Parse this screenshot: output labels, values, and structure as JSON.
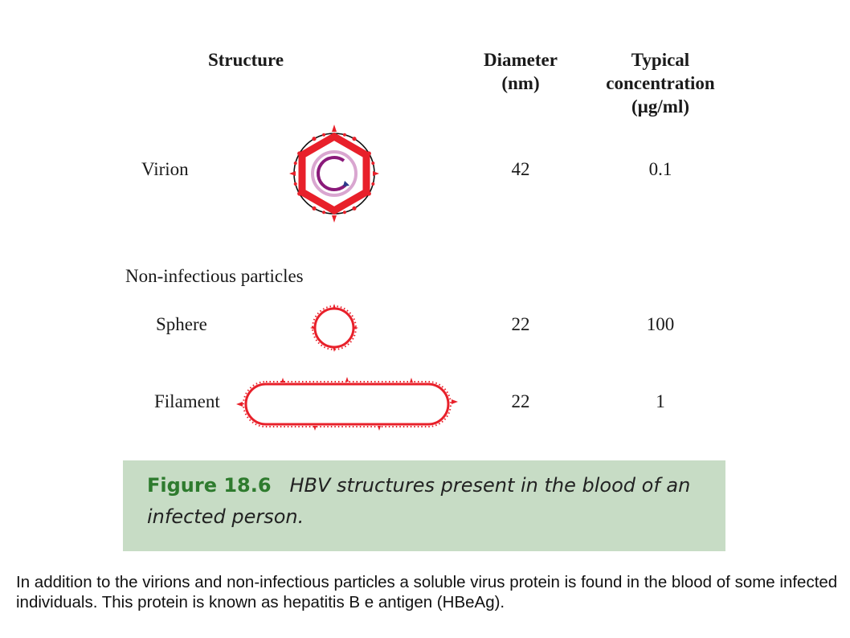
{
  "table": {
    "headers": {
      "structure": "Structure",
      "diameter": "Diameter\n(nm)",
      "concentration": "Typical\nconcentration\n(µg/ml)"
    },
    "rows": [
      {
        "label": "Virion",
        "diameter": "42",
        "concentration": "0.1",
        "icon": "virion-icon"
      },
      {
        "label": "Non-infectious particles"
      },
      {
        "label": "Sphere",
        "diameter": "22",
        "concentration": "100",
        "icon": "sphere-particle-icon"
      },
      {
        "label": "Filament",
        "diameter": "22",
        "concentration": "1",
        "icon": "filament-particle-icon"
      }
    ]
  },
  "caption": {
    "label": "Figure 18.6",
    "text_line1": "HBV structures present in the blood of an",
    "text_line2": "infected person."
  },
  "note": "In addition to the virions and non-infectious particles a soluble virus protein is found in the blood of some infected individuals. This protein is known as hepatitis B e antigen (HBeAg).",
  "colors": {
    "particle_red": "#e8202a",
    "dna_purple": "#8a1a7a",
    "dna_pink": "#d9a6d0",
    "caption_bg": "#c7dcc5",
    "caption_label_green": "#2e7b2e"
  }
}
